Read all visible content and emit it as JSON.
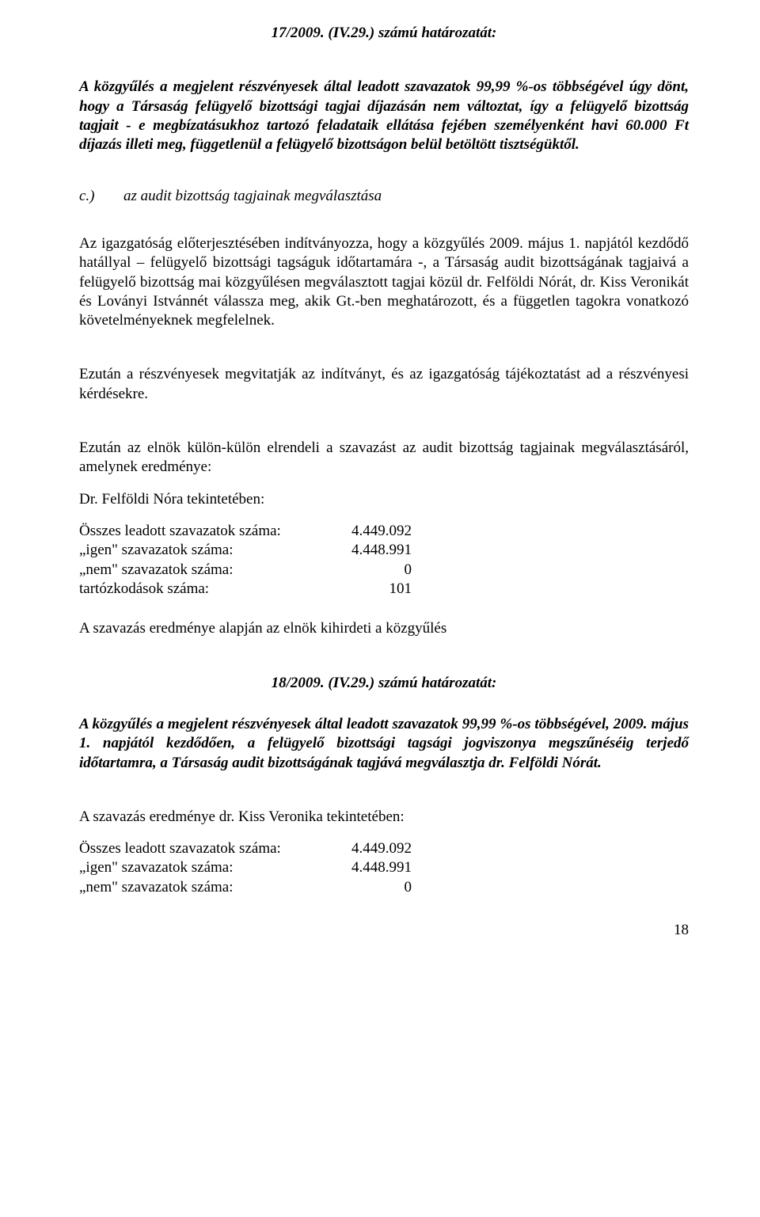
{
  "resolution1": {
    "heading": "17/2009. (IV.29.) számú határozatát:",
    "body": "A közgyűlés a megjelent részvényesek által leadott szavazatok 99,99 %-os többségével úgy dönt, hogy a Társaság felügyelő bizottsági tagjai díjazásán nem változtat, így a felügyelő bizottság tagjait - e megbízatásukhoz tartozó feladataik ellátása fejében személyenként havi 60.000 Ft díjazás illeti meg, függetlenül a felügyelő bizottságon belül betöltött tisztségüktől."
  },
  "item_c": {
    "letter": "c.)",
    "text": "az audit bizottság tagjainak megválasztása"
  },
  "p_proposal": "Az igazgatóság előterjesztésében indítványozza, hogy a közgyűlés 2009. május 1. napjától kezdődő hatállyal – felügyelő bizottsági tagságuk időtartamára -, a Társaság audit bizottságának tagjaivá a felügyelő bizottság mai közgyűlésen megválasztott tagjai közül dr. Felföldi Nórát, dr. Kiss Veronikát és Loványi Istvánnét válassza meg, akik Gt.-ben meghatározott, és a független tagokra vonatkozó követelményeknek megfelelnek.",
  "p_discuss": "Ezután a részvényesek megvitatják az indítványt, és az igazgatóság tájékoztatást ad a részvényesi kérdésekre.",
  "p_vote_order": "Ezután az elnök külön-külön elrendeli a szavazást az audit bizottság tagjainak megválasztásáról, amelynek eredménye:",
  "felfoldi_label": "Dr. Felföldi Nóra tekintetében:",
  "vote_labels": {
    "total": "Összes leadott szavazatok száma:",
    "yes": "„igen\" szavazatok száma:",
    "no": "„nem\" szavazatok száma:",
    "abstain": "tartózkodások száma:"
  },
  "felfoldi_votes": {
    "total": "4.449.092",
    "yes": "4.448.991",
    "no": "0",
    "abstain": "101"
  },
  "p_announce": "A szavazás eredménye alapján az elnök kihirdeti a közgyűlés",
  "resolution2": {
    "heading": "18/2009. (IV.29.) számú határozatát:",
    "body": "A közgyűlés a megjelent részvényesek által leadott szavazatok 99,99 %-os többségével, 2009. május 1. napjától kezdődően, a felügyelő bizottsági tagsági jogviszonya megszűnéséig terjedő időtartamra, a Társaság audit bizottságának tagjává megválasztja dr. Felföldi Nórát."
  },
  "kiss_label": "A szavazás eredménye dr. Kiss Veronika tekintetében:",
  "kiss_votes": {
    "total": "4.449.092",
    "yes": "4.448.991",
    "no": "0"
  },
  "page_number": "18"
}
